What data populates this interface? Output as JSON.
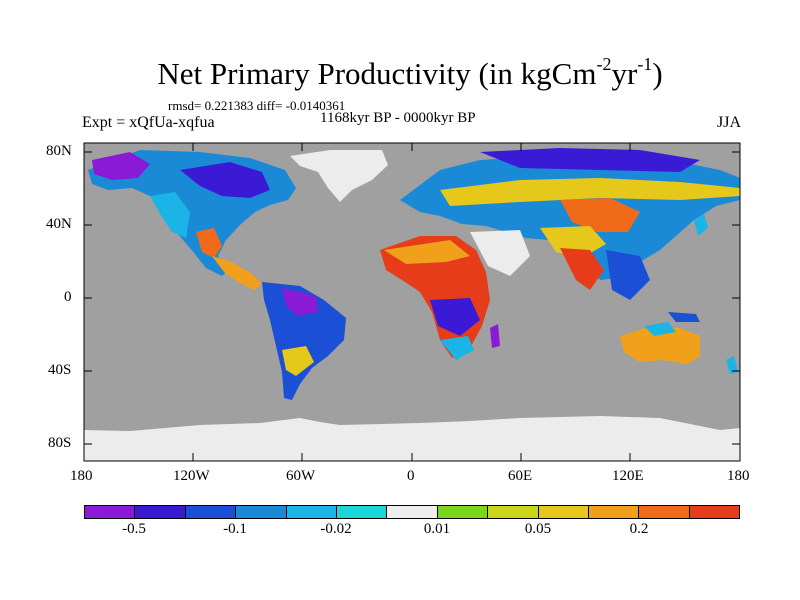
{
  "title": {
    "main": "Net Primary Productivity (in kgCm",
    "sup1": "-2",
    "mid": "yr",
    "sup2": "-1",
    "end": ")"
  },
  "stats": "rmsd= 0.221383 diff= -0.0140361",
  "experiment": "Expt = xQfUa-xqfua",
  "period": "1168kyr BP - 0000kyr BP",
  "season": "JJA",
  "axes": {
    "lat_labels": [
      "80N",
      "40N",
      "0",
      "40S",
      "80S"
    ],
    "lon_labels": [
      "180",
      "120W",
      "60W",
      "0",
      "60E",
      "120E",
      "180"
    ]
  },
  "colorbar": {
    "colors": [
      "#8a1ad6",
      "#3b1ad6",
      "#1a4fd6",
      "#1a8ad6",
      "#1ab4e6",
      "#1ad6d6",
      "#eeeeee",
      "#7ad61a",
      "#c8d61a",
      "#e6c81a",
      "#f0a01a",
      "#f06a1a",
      "#e63c1a"
    ],
    "labels": [
      "-0.5",
      "-0.1",
      "-0.02",
      "0.01",
      "0.05",
      "0.2"
    ]
  },
  "map_colors": {
    "ocean": "#a0a0a0",
    "ice": "#ececec",
    "border": "#000000"
  }
}
